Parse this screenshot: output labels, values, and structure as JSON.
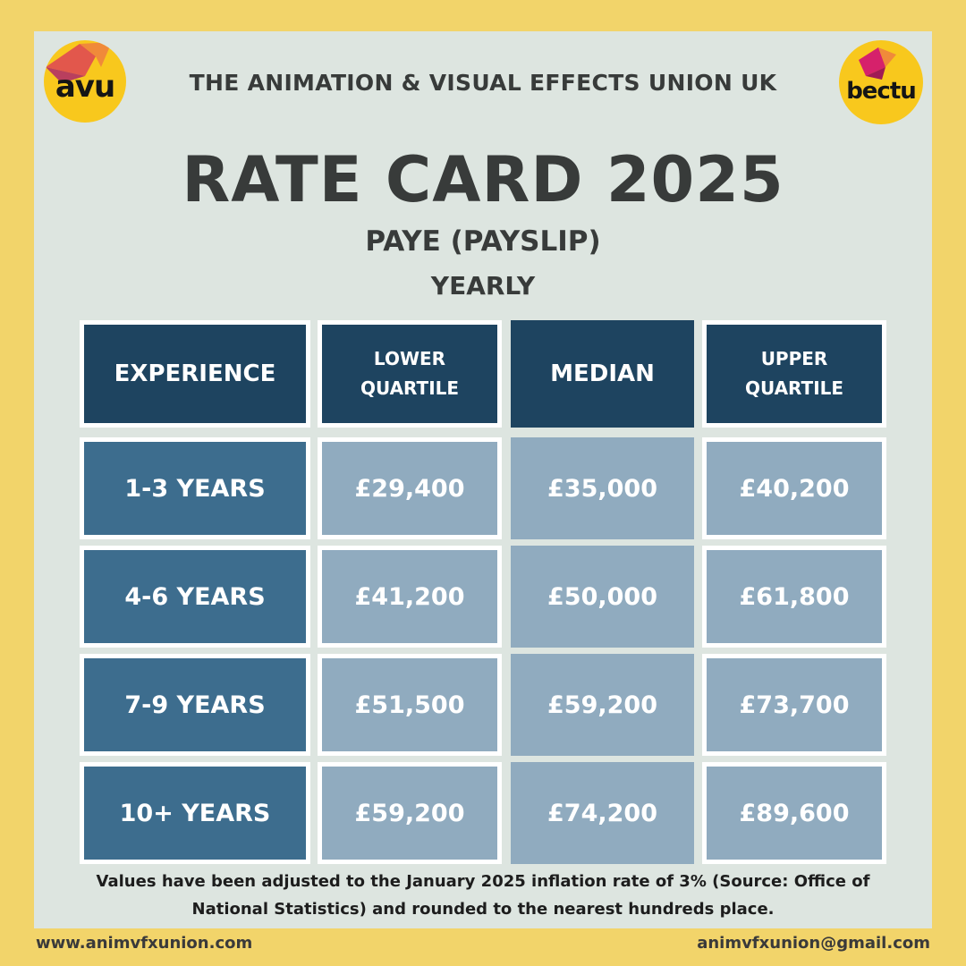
{
  "logos": {
    "left": {
      "text": "avu",
      "accent": "#e2574c",
      "bg": "#f8c81d"
    },
    "right": {
      "text": "bectu",
      "accent": "#d6216b",
      "bg": "#f8c81d"
    }
  },
  "union_title": "THE ANIMATION & VISUAL EFFECTS UNION UK",
  "title": "RATE CARD 2025",
  "subtitle": "PAYE (PAYSLIP)",
  "period": "YEARLY",
  "table": {
    "headers": {
      "experience": "EXPERIENCE",
      "lower": [
        "LOWER",
        "QUARTILE"
      ],
      "median": "MEDIAN",
      "upper": [
        "UPPER",
        "QUARTILE"
      ]
    },
    "rows": [
      {
        "experience": "1-3 YEARS",
        "lower": "£29,400",
        "median": "£35,000",
        "upper": "£40,200"
      },
      {
        "experience": "4-6 YEARS",
        "lower": "£41,200",
        "median": "£50,000",
        "upper": "£61,800"
      },
      {
        "experience": "7-9 YEARS",
        "lower": "£51,500",
        "median": "£59,200",
        "upper": "£73,700"
      },
      {
        "experience": "10+ YEARS",
        "lower": "£59,200",
        "median": "£74,200",
        "upper": "£89,600"
      }
    ]
  },
  "footnote": {
    "line1": "Values have been adjusted to the January 2025 inflation rate of 3% (Source: Office of",
    "line2": "National Statistics) and rounded to the nearest hundreds place."
  },
  "footer": {
    "website": "www.animvfxunion.com",
    "email": "animvfxunion@gmail.com"
  },
  "colors": {
    "background": "#f2d46a",
    "panel": "#dde5e0",
    "header_cell": "#1e4460",
    "experience_cell": "#3d6d8e",
    "value_cell": "#90abbf",
    "title_text": "#383b3a"
  }
}
